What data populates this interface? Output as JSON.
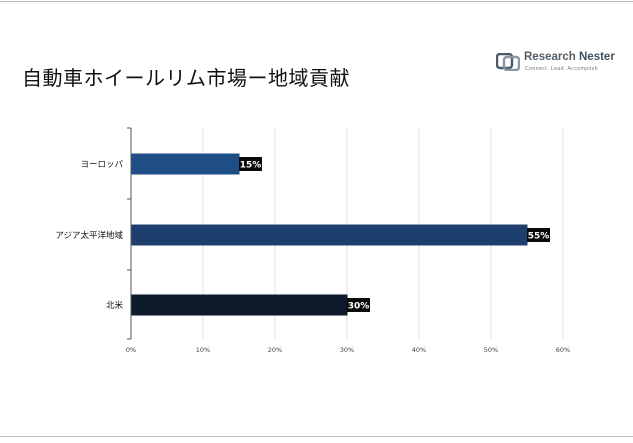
{
  "title": "自動車ホイールリム市場ー地域貢献",
  "logo": {
    "name_part1": "Research",
    "name_part2": "Nester",
    "tagline": "Connect. Lead. Accomplish"
  },
  "colors": {
    "bar_europe": "#1f4e87",
    "bar_apac": "#1e3f6e",
    "bar_north_america": "#0d1a2b",
    "label_bg": "#0a0a0a",
    "grid": "#d9d9d9",
    "axis": "#555555"
  },
  "chart_data": {
    "type": "bar",
    "orientation": "horizontal",
    "categories": [
      "ヨーロッパ",
      "アジア太平洋地域",
      "北米"
    ],
    "values": [
      15,
      55,
      30
    ],
    "value_labels": [
      "15%",
      "55%",
      "30%"
    ],
    "x_ticks": [
      "0%",
      "10%",
      "20%",
      "30%",
      "40%",
      "50%",
      "60%"
    ],
    "xlim": [
      0,
      60
    ],
    "grid": "vertical",
    "legend": "none"
  }
}
